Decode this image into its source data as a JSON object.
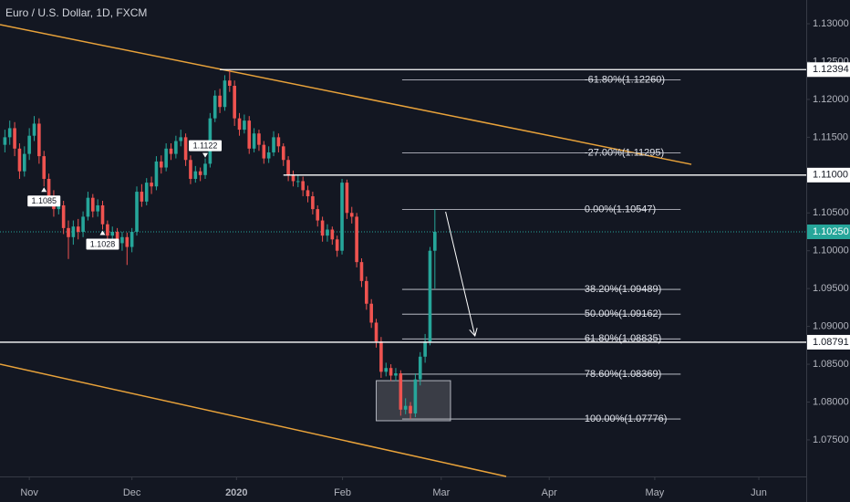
{
  "chart_data": {
    "type": "candlestick",
    "title": "Euro / U.S. Dollar, 1D, FXCM",
    "x": [
      -5,
      -4,
      -3,
      -2,
      -1,
      0,
      1,
      2,
      3,
      4,
      5,
      6,
      7,
      8,
      9,
      10,
      11,
      12,
      13,
      14,
      15,
      16,
      17,
      18,
      19,
      20,
      21,
      22,
      23,
      24,
      25,
      26,
      27,
      28,
      29,
      30,
      31,
      32,
      33,
      34,
      35,
      36,
      37,
      38,
      39,
      40,
      41,
      42,
      43,
      44,
      45,
      46,
      47,
      48,
      49,
      50,
      51,
      52,
      53,
      54,
      55,
      56,
      57,
      58,
      59,
      60,
      61,
      62,
      63,
      64,
      65,
      66,
      67,
      68,
      69,
      70,
      71,
      72,
      73,
      74,
      75,
      76,
      77,
      78,
      79,
      80,
      81,
      82,
      83
    ],
    "open": [
      1.114,
      1.115,
      1.1162,
      1.1135,
      1.1105,
      1.1128,
      1.1152,
      1.1168,
      1.1125,
      1.1095,
      1.1072,
      1.1055,
      1.106,
      1.103,
      1.1018,
      1.1032,
      1.1025,
      1.1045,
      1.107,
      1.1052,
      1.106,
      1.1035,
      1.102,
      1.1025,
      1.101,
      1.1018,
      1.1005,
      1.1025,
      1.1078,
      1.1065,
      1.109,
      1.1085,
      1.1118,
      1.111,
      1.1135,
      1.1128,
      1.1145,
      1.115,
      1.112,
      1.1095,
      1.1105,
      1.11,
      1.1115,
      1.1175,
      1.1205,
      1.119,
      1.1225,
      1.1218,
      1.1175,
      1.116,
      1.1172,
      1.1135,
      1.1155,
      1.114,
      1.1122,
      1.113,
      1.115,
      1.1138,
      1.112,
      1.11,
      1.1092,
      1.1092,
      1.108,
      1.1072,
      1.1055,
      1.104,
      1.102,
      1.1028,
      1.1015,
      1.1,
      1.109,
      1.105,
      1.1045,
      1.0985,
      1.096,
      1.093,
      1.0905,
      1.088,
      1.084,
      1.0845,
      1.0835,
      1.0838,
      1.079,
      1.0795,
      1.0785,
      1.083,
      1.086,
      1.088,
      1.1
    ],
    "high": [
      1.116,
      1.1172,
      1.117,
      1.1142,
      1.1138,
      1.1162,
      1.1178,
      1.1175,
      1.1132,
      1.1102,
      1.108,
      1.107,
      1.1066,
      1.104,
      1.104,
      1.1042,
      1.1052,
      1.1078,
      1.1075,
      1.1068,
      1.1066,
      1.104,
      1.1032,
      1.103,
      1.1025,
      1.1024,
      1.103,
      1.1085,
      1.1088,
      1.1096,
      1.1098,
      1.1125,
      1.1126,
      1.1142,
      1.1142,
      1.1152,
      1.116,
      1.1155,
      1.1126,
      1.1112,
      1.111,
      1.1122,
      1.1182,
      1.1212,
      1.1214,
      1.1232,
      1.12393,
      1.1225,
      1.1182,
      1.118,
      1.1178,
      1.1162,
      1.116,
      1.1145,
      1.1138,
      1.1158,
      1.1155,
      1.1142,
      1.1125,
      1.1106,
      1.11,
      1.1098,
      1.1086,
      1.1078,
      1.106,
      1.1045,
      1.1035,
      1.1032,
      1.102,
      1.1095,
      1.1094,
      1.1058,
      1.105,
      1.099,
      1.0966,
      1.0936,
      1.091,
      1.0886,
      1.0852,
      1.085,
      1.0845,
      1.0842,
      1.0805,
      1.08,
      1.0838,
      1.0866,
      1.089,
      1.1005,
      1.10547
    ],
    "low": [
      1.113,
      1.114,
      1.1125,
      1.1095,
      1.1098,
      1.112,
      1.1145,
      1.1115,
      1.1085,
      1.1062,
      1.1045,
      1.1048,
      1.1022,
      1.09891,
      1.1008,
      1.1015,
      1.1018,
      1.104,
      1.1044,
      1.1045,
      1.1028,
      1.1012,
      1.101,
      1.1002,
      1.1,
      1.09812,
      1.0998,
      1.102,
      1.1058,
      1.106,
      1.1075,
      1.108,
      1.1102,
      1.1105,
      1.112,
      1.1122,
      1.1138,
      1.1112,
      1.1088,
      1.109,
      1.1092,
      1.1095,
      1.111,
      1.117,
      1.1182,
      1.1185,
      1.121,
      1.1165,
      1.1152,
      1.1155,
      1.1128,
      1.113,
      1.1132,
      1.1115,
      1.1116,
      1.1125,
      1.113,
      1.1112,
      1.1092,
      1.1085,
      1.1084,
      1.1072,
      1.1064,
      1.1048,
      1.1032,
      1.1012,
      1.1012,
      1.1008,
      1.0992,
      1.0995,
      1.1042,
      1.1036,
      1.0978,
      1.0952,
      1.0922,
      1.0898,
      1.0872,
      1.0832,
      1.0834,
      1.0828,
      1.0828,
      1.0782,
      1.0784,
      1.07776,
      1.078,
      1.0822,
      1.0852,
      1.0875,
      1.095
    ],
    "close": [
      1.115,
      1.1162,
      1.1135,
      1.1105,
      1.1128,
      1.1152,
      1.1168,
      1.1125,
      1.1095,
      1.1072,
      1.1055,
      1.106,
      1.103,
      1.1018,
      1.1032,
      1.1025,
      1.1045,
      1.107,
      1.1052,
      1.106,
      1.1035,
      1.102,
      1.1025,
      1.101,
      1.1018,
      1.1005,
      1.1025,
      1.1078,
      1.1065,
      1.109,
      1.1085,
      1.1118,
      1.111,
      1.1135,
      1.1128,
      1.1145,
      1.115,
      1.112,
      1.1095,
      1.1105,
      1.11,
      1.1115,
      1.1175,
      1.1205,
      1.119,
      1.1225,
      1.1218,
      1.1175,
      1.116,
      1.1172,
      1.1135,
      1.1155,
      1.114,
      1.1122,
      1.113,
      1.115,
      1.1138,
      1.112,
      1.11,
      1.1092,
      1.1092,
      1.108,
      1.1072,
      1.1055,
      1.104,
      1.102,
      1.1028,
      1.1015,
      1.1,
      1.109,
      1.105,
      1.1045,
      1.0985,
      1.096,
      1.093,
      1.0905,
      1.088,
      1.084,
      1.0845,
      1.0835,
      1.0838,
      1.079,
      1.0795,
      1.0785,
      1.083,
      1.086,
      1.088,
      1.1,
      1.1025
    ],
    "up_color": "#26a69a",
    "down_color": "#ef5350",
    "xlim": [
      -6,
      159
    ],
    "xticks": [
      {
        "value": 0,
        "label": "Nov"
      },
      {
        "value": 21,
        "label": "Dec"
      },
      {
        "value": 42.4,
        "label": "2020"
      },
      {
        "value": 64.1,
        "label": "Feb"
      },
      {
        "value": 84.3,
        "label": "Mar"
      },
      {
        "value": 106.4,
        "label": "Apr"
      },
      {
        "value": 128,
        "label": "May"
      },
      {
        "value": 149.3,
        "label": "Jun"
      }
    ],
    "ylim": [
      1.07017,
      1.13314
    ],
    "yticks": [
      {
        "value": 1.075,
        "label": "1.07500"
      },
      {
        "value": 1.08,
        "label": "1.08000"
      },
      {
        "value": 1.085,
        "label": "1.08500"
      },
      {
        "value": 1.09,
        "label": "1.09000"
      },
      {
        "value": 1.095,
        "label": "1.09500"
      },
      {
        "value": 1.1,
        "label": "1.10000"
      },
      {
        "value": 1.105,
        "label": "1.10500"
      },
      {
        "value": 1.11,
        "label": "1.11000"
      },
      {
        "value": 1.115,
        "label": "1.11500"
      },
      {
        "value": 1.12,
        "label": "1.12000"
      },
      {
        "value": 1.125,
        "label": "1.12500"
      },
      {
        "value": 1.13,
        "label": "1.13000"
      }
    ],
    "price_levels": [
      {
        "price": 1.12394,
        "from": 39
      },
      {
        "price": 1.11,
        "label": "1.11000",
        "from": 52
      },
      {
        "price": 1.08791,
        "from": -6
      }
    ],
    "last_price": {
      "value": 1.1025,
      "label": "1.10250",
      "color": "#26a69a"
    },
    "fibonacci": {
      "from": 76.3,
      "to": 133.3,
      "levels": [
        {
          "label": "-61.80%(1.12260)",
          "price": 1.1226
        },
        {
          "label": "-27.00%(1.11295)",
          "price": 1.11295
        },
        {
          "label": "0.00%(1.10547)",
          "price": 1.10547
        },
        {
          "label": "38.20%(1.09489)",
          "price": 1.09489
        },
        {
          "label": "50.00%(1.09162)",
          "price": 1.09162
        },
        {
          "label": "61.80%(1.08835)",
          "price": 1.08835
        },
        {
          "label": "78.60%(1.08369)",
          "price": 1.08369
        },
        {
          "label": "100.00%(1.07776)",
          "price": 1.07776
        }
      ]
    },
    "trendlines": [
      {
        "x": [
          -6,
          135.5
        ],
        "price": [
          1.12988,
          1.11142
        ],
        "color": "#e8a23a"
      },
      {
        "x": [
          -6,
          97.6
        ],
        "price": [
          1.08501,
          1.07017
        ],
        "color": "#e8a23a"
      }
    ],
    "zone": {
      "x": [
        71,
        86.2
      ],
      "price": [
        1.08283,
        1.07753
      ]
    },
    "arrow": {
      "x": [
        85.2,
        91.2
      ],
      "price": [
        1.10515,
        1.08875
      ]
    }
  }
}
